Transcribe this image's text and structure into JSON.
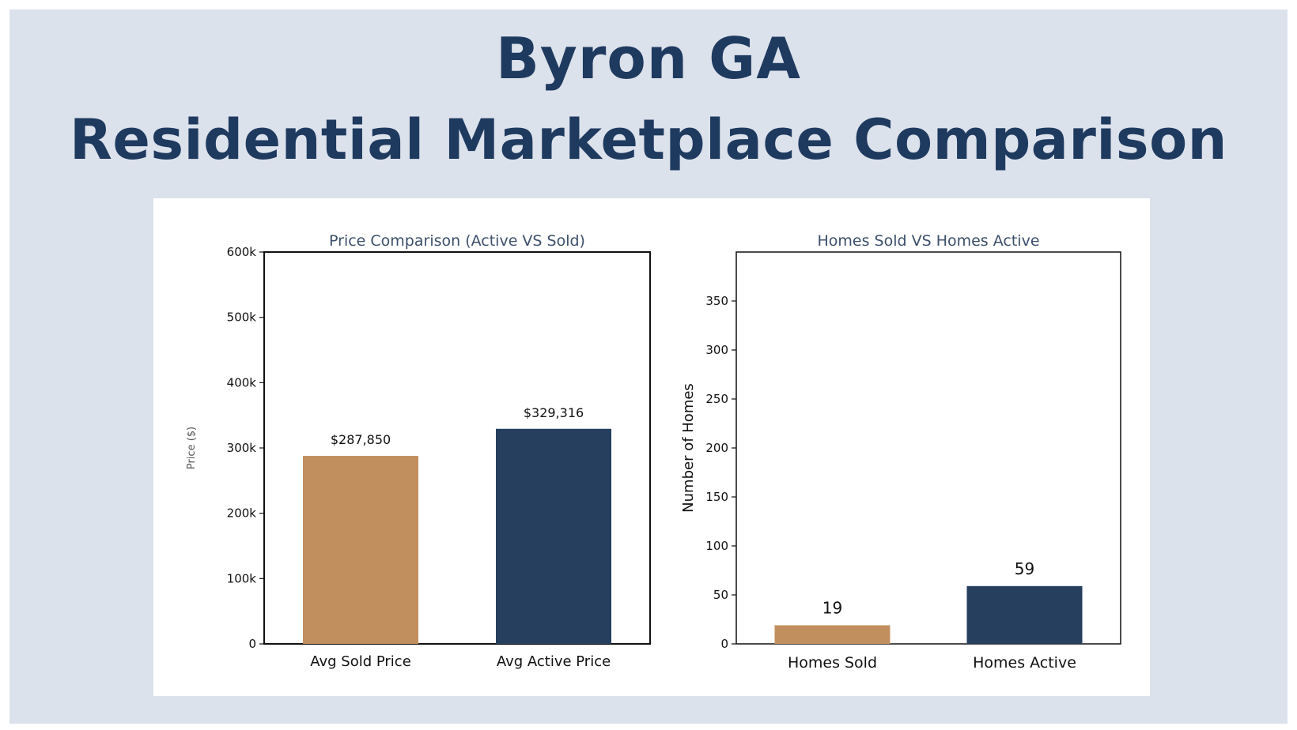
{
  "header": {
    "title_line1": "Byron GA",
    "title_line2": "Residential Marketplace Comparison"
  },
  "colors": {
    "background": "#dce2ec",
    "title": "#1f3a5f",
    "sold": "#c18f5e",
    "active": "#263f5f"
  },
  "chart_data": [
    {
      "type": "bar",
      "title": "Price Comparison (Active VS Sold)",
      "xlabel": "",
      "ylabel": "Price ($)",
      "categories": [
        "Avg Sold Price",
        "Avg Active Price"
      ],
      "values": [
        287850,
        329316
      ],
      "data_labels": [
        "$287,850",
        "$329,316"
      ],
      "bar_colors": [
        "#c18f5e",
        "#263f5f"
      ],
      "ylim": [
        0,
        600000
      ],
      "yticks": [
        0,
        100000,
        200000,
        300000,
        400000,
        500000,
        600000
      ],
      "ytick_labels": [
        "0",
        "100k",
        "200k",
        "300k",
        "400k",
        "500k",
        "600k"
      ],
      "grid": false,
      "legend": "none"
    },
    {
      "type": "bar",
      "title": "Homes Sold VS Homes Active",
      "xlabel": "",
      "ylabel": "Number of Homes",
      "categories": [
        "Homes Sold",
        "Homes Active"
      ],
      "values": [
        19,
        59
      ],
      "data_labels": [
        "19",
        "59"
      ],
      "bar_colors": [
        "#c18f5e",
        "#263f5f"
      ],
      "ylim": [
        0,
        400
      ],
      "yticks": [
        0,
        50,
        100,
        150,
        200,
        250,
        300,
        350
      ],
      "ytick_labels": [
        "0",
        "50",
        "100",
        "150",
        "200",
        "250",
        "300",
        "350"
      ],
      "grid": false,
      "legend": "none"
    }
  ]
}
